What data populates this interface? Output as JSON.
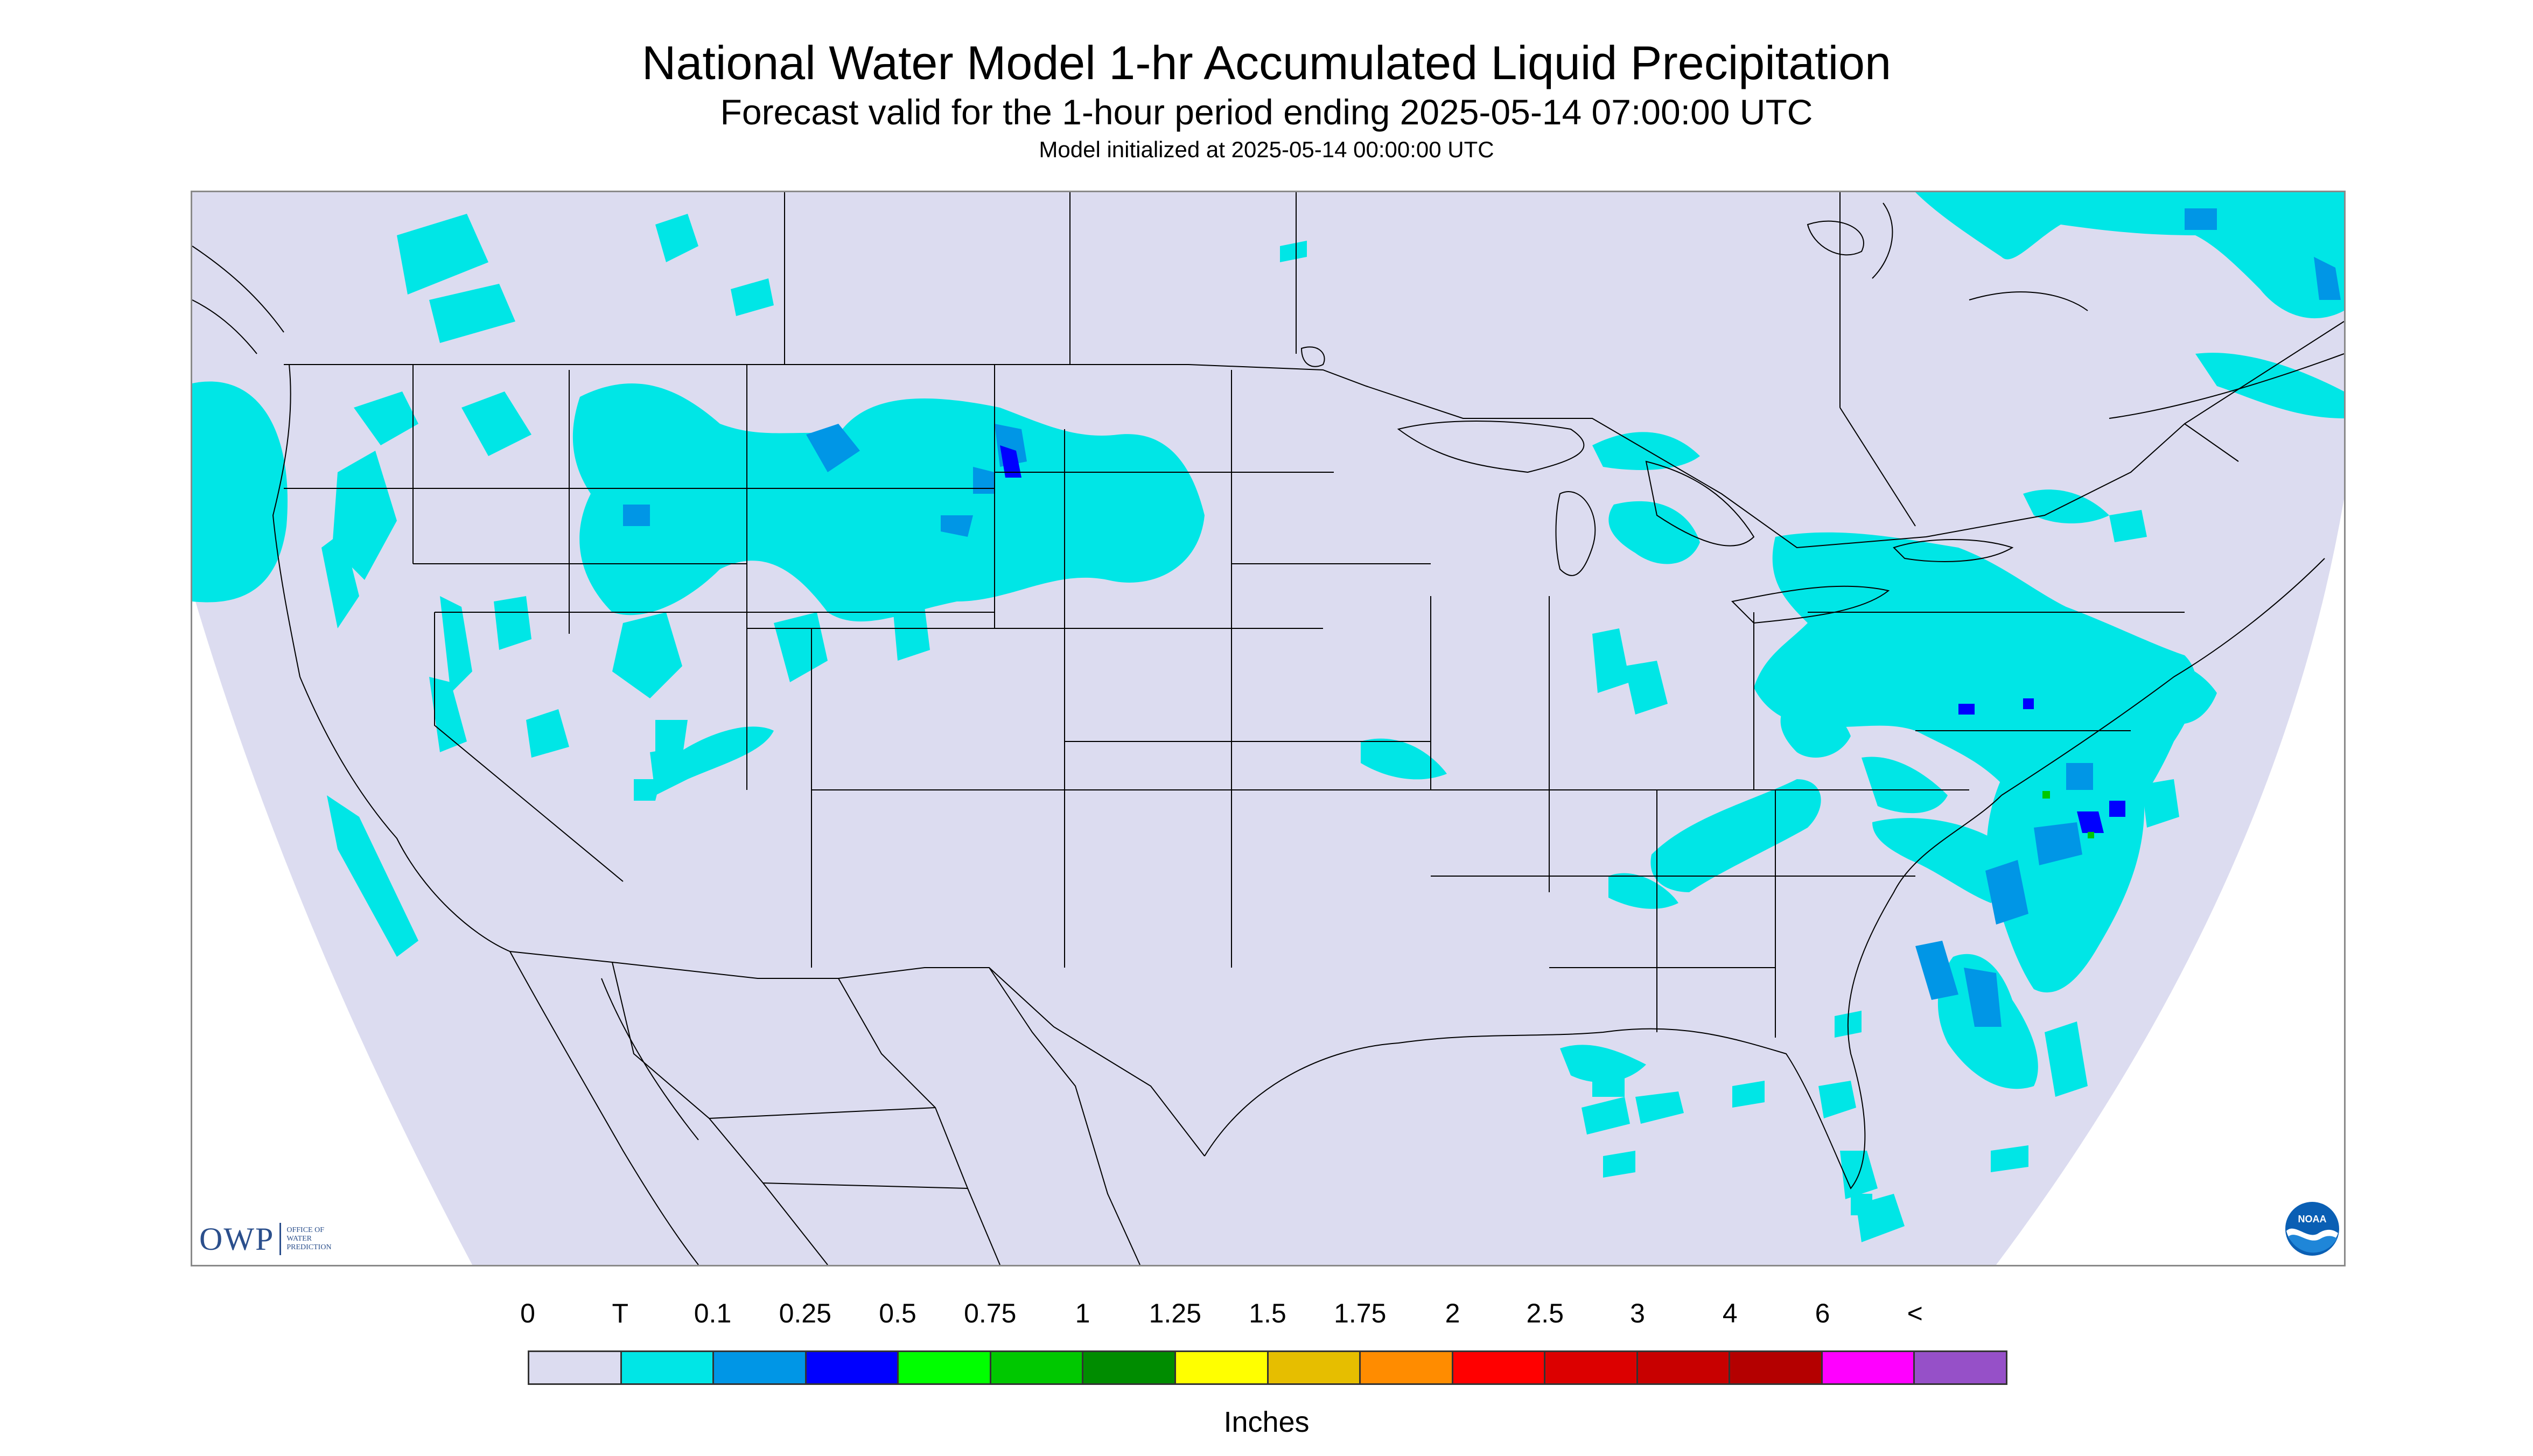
{
  "header": {
    "title": "National Water Model 1-hr Accumulated Liquid Precipitation",
    "subtitle": "Forecast valid for the 1-hour period ending 2025-05-14 07:00:00 UTC",
    "init_line": "Model initialized at 2025-05-14 00:00:00 UTC"
  },
  "logos": {
    "owp_text": "OWP",
    "owp_sub": [
      "Office of",
      "Water",
      "Prediction"
    ],
    "noaa_text": "NOAA"
  },
  "map": {
    "domain_fill": "#dcdcf0",
    "outside_fill": "#ffffff",
    "boundary_color": "#000000",
    "precip_regions": [
      {
        "name": "Pacific Northwest coast",
        "category": "T"
      },
      {
        "name": "Idaho / Montana / Wyoming",
        "category": "T"
      },
      {
        "name": "Great Basin / Utah",
        "category": "T"
      },
      {
        "name": "Upper Michigan / Great Lakes",
        "category": "T"
      },
      {
        "name": "Ohio Valley / Mid-Atlantic",
        "category": "T"
      },
      {
        "name": "Atlantic offshore",
        "category": "0.25"
      },
      {
        "name": "Southern Appalachians",
        "category": "T"
      },
      {
        "name": "Gulf of Mexico / Florida offshore",
        "category": "T"
      },
      {
        "name": "Quebec / Atlantic Canada",
        "category": "T"
      }
    ]
  },
  "legend": {
    "labels": [
      "0",
      "T",
      "0.1",
      "0.25",
      "0.5",
      "0.75",
      "1",
      "1.25",
      "1.5",
      "1.75",
      "2",
      "2.5",
      "3",
      "4",
      "6",
      "<"
    ],
    "colors": [
      "#dcdcf0",
      "#00e6e6",
      "#0096e6",
      "#0000ff",
      "#00ff00",
      "#00c800",
      "#008c00",
      "#ffff00",
      "#e6be00",
      "#ff8c00",
      "#ff0000",
      "#dc0000",
      "#c80000",
      "#b40000",
      "#ff00ff",
      "#9650c8"
    ],
    "units": "Inches"
  }
}
